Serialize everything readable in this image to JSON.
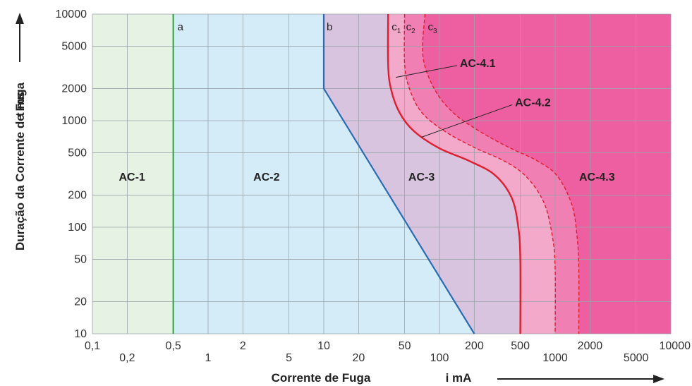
{
  "chart_data": {
    "type": "area",
    "xscale": "log",
    "yscale": "log",
    "xlim": [
      0.1,
      10000
    ],
    "ylim": [
      10,
      10000
    ],
    "grid": true,
    "xlabel": "Corrente de Fuga",
    "xunit": "i  mA",
    "ylabel": "Duração da Corrente de Fuga",
    "yunit": "t  ms",
    "x_ticks": [
      {
        "v": 0.1,
        "label": "0,1",
        "row": 0
      },
      {
        "v": 0.2,
        "label": "0,2",
        "row": 1
      },
      {
        "v": 0.5,
        "label": "0,5",
        "row": 0
      },
      {
        "v": 1,
        "label": "1",
        "row": 1
      },
      {
        "v": 2,
        "label": "2",
        "row": 0
      },
      {
        "v": 5,
        "label": "5",
        "row": 1
      },
      {
        "v": 10,
        "label": "10",
        "row": 0
      },
      {
        "v": 20,
        "label": "20",
        "row": 1
      },
      {
        "v": 50,
        "label": "50",
        "row": 0
      },
      {
        "v": 100,
        "label": "100",
        "row": 1
      },
      {
        "v": 200,
        "label": "200",
        "row": 0
      },
      {
        "v": 500,
        "label": "500",
        "row": 0
      },
      {
        "v": 1000,
        "label": "1000",
        "row": 1
      },
      {
        "v": 2000,
        "label": "2000",
        "row": 0
      },
      {
        "v": 5000,
        "label": "5000",
        "row": 1
      },
      {
        "v": 10000,
        "label": "10000",
        "row": 0
      }
    ],
    "y_ticks": [
      {
        "v": 10,
        "label": "10"
      },
      {
        "v": 20,
        "label": "20"
      },
      {
        "v": 50,
        "label": "50"
      },
      {
        "v": 100,
        "label": "100"
      },
      {
        "v": 200,
        "label": "200"
      },
      {
        "v": 500,
        "label": "500"
      },
      {
        "v": 1000,
        "label": "1000"
      },
      {
        "v": 2000,
        "label": "2000"
      },
      {
        "v": 5000,
        "label": "5000"
      },
      {
        "v": 10000,
        "label": "10000"
      }
    ],
    "gridlines_x": [
      0.1,
      0.2,
      0.5,
      1,
      2,
      5,
      10,
      20,
      50,
      100,
      200,
      500,
      1000,
      2000,
      5000,
      10000
    ],
    "gridlines_y": [
      10,
      20,
      50,
      100,
      200,
      500,
      1000,
      2000,
      5000,
      10000
    ],
    "zones": [
      {
        "name": "AC-1",
        "label_x": 0.22,
        "label_y": 300,
        "color": "#e6f3e4"
      },
      {
        "name": "AC-2",
        "label_x": 3.2,
        "label_y": 300,
        "color": "#d3ecf8"
      },
      {
        "name": "AC-3",
        "label_x": 70,
        "label_y": 300,
        "color": "#d9c4e0"
      },
      {
        "name": "AC-4.1",
        "color": "#f3a9c9"
      },
      {
        "name": "AC-4.2",
        "color": "#f07fb4"
      },
      {
        "name": "AC-4.3",
        "label_x": 2300,
        "label_y": 300,
        "color": "#ee5fa2"
      }
    ],
    "boundaries": {
      "a": {
        "name": "a",
        "color": "#2e9f3f",
        "points": [
          [
            0.5,
            10
          ],
          [
            0.5,
            10000
          ]
        ]
      },
      "b": {
        "name": "b",
        "color": "#2b6cb0",
        "points": [
          [
            10,
            10000
          ],
          [
            10,
            2000
          ],
          [
            200,
            10
          ]
        ]
      },
      "c1": {
        "name": "c",
        "sub": "1",
        "color": "#e01e2e",
        "dashed": false,
        "points": [
          [
            36,
            10000
          ],
          [
            36,
            3400
          ],
          [
            38,
            2000
          ],
          [
            45,
            1200
          ],
          [
            60,
            800
          ],
          [
            100,
            550
          ],
          [
            180,
            420
          ],
          [
            300,
            310
          ],
          [
            420,
            190
          ],
          [
            480,
            100
          ],
          [
            500,
            50
          ],
          [
            500,
            10
          ]
        ]
      },
      "c2": {
        "name": "c",
        "sub": "2",
        "color": "#e01e2e",
        "dashed": true,
        "points": [
          [
            50,
            10000
          ],
          [
            50,
            3400
          ],
          [
            55,
            2000
          ],
          [
            70,
            1200
          ],
          [
            110,
            800
          ],
          [
            200,
            560
          ],
          [
            360,
            420
          ],
          [
            560,
            300
          ],
          [
            800,
            170
          ],
          [
            950,
            80
          ],
          [
            1000,
            40
          ],
          [
            1000,
            10
          ]
        ]
      },
      "c3": {
        "name": "c",
        "sub": "3",
        "color": "#e01e2e",
        "dashed": true,
        "points": [
          [
            75,
            10000
          ],
          [
            72,
            4000
          ],
          [
            90,
            2000
          ],
          [
            130,
            1200
          ],
          [
            220,
            800
          ],
          [
            400,
            560
          ],
          [
            700,
            420
          ],
          [
            1050,
            300
          ],
          [
            1400,
            160
          ],
          [
            1550,
            80
          ],
          [
            1600,
            40
          ],
          [
            1600,
            10
          ]
        ]
      }
    },
    "callouts": [
      {
        "label": "AC-4.1",
        "text_x": 150,
        "text_y": 3500,
        "to_x": 42,
        "to_y": 2550
      },
      {
        "label": "AC-4.2",
        "text_x": 450,
        "text_y": 1500,
        "to_x": 70,
        "to_y": 700
      }
    ]
  }
}
